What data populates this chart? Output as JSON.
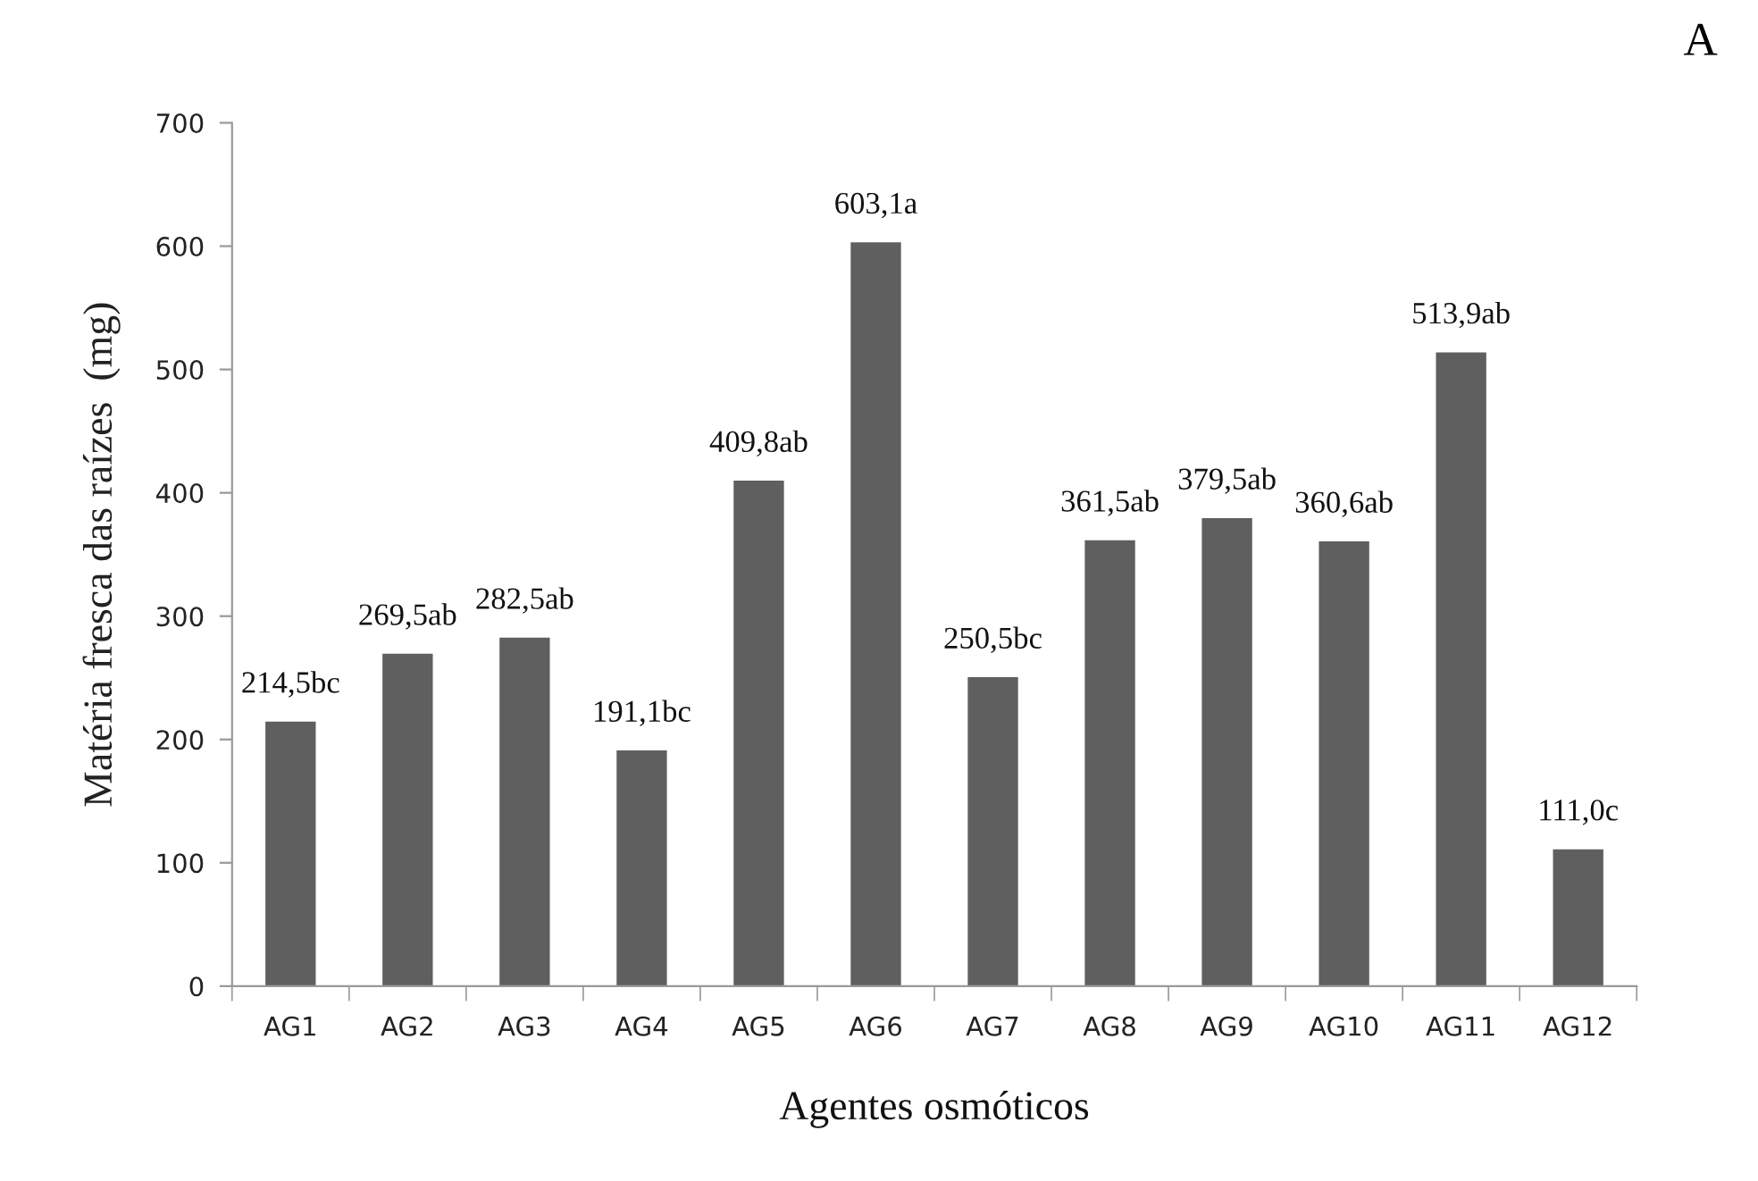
{
  "chart_data": {
    "type": "bar",
    "xlabel": "Agentes osmóticos",
    "ylabel": "Matéria fresca das raízes  (mg)",
    "annotations": [
      "A"
    ],
    "categories": [
      "AG1",
      "AG2",
      "AG3",
      "AG4",
      "AG5",
      "AG6",
      "AG7",
      "AG8",
      "AG9",
      "AG10",
      "AG11",
      "AG12"
    ],
    "values": [
      214.5,
      269.5,
      282.5,
      191.1,
      409.8,
      603.1,
      250.5,
      361.5,
      379.5,
      360.6,
      513.9,
      111.0
    ],
    "value_labels": [
      "214,5bc",
      "269,5ab",
      "282,5ab",
      "191,1bc",
      "409,8ab",
      "603,1a",
      "250,5bc",
      "361,5ab",
      "379,5ab",
      "360,6ab",
      "513,9ab",
      "111,0c"
    ],
    "color": "#5f5f5f",
    "ylim": [
      0,
      700
    ],
    "yticks": [
      0,
      100,
      200,
      300,
      400,
      500,
      600,
      700
    ],
    "grid": false,
    "legend": false
  }
}
